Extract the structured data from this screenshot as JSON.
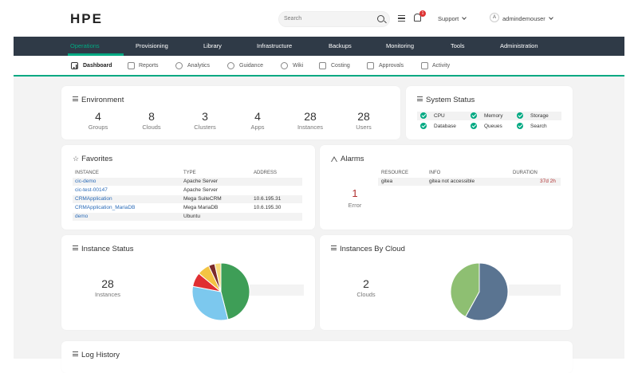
{
  "header": {
    "logo": "HPE",
    "search_placeholder": "Search",
    "notification_count": "1",
    "support_label": "Support",
    "avatar_initial": "A",
    "username": "admindemouser"
  },
  "main_nav": [
    "Operations",
    "Provisioning",
    "Library",
    "Infrastructure",
    "Backups",
    "Monitoring",
    "Tools",
    "Administration"
  ],
  "sub_nav": [
    "Dashboard",
    "Reports",
    "Analytics",
    "Guidance",
    "Wiki",
    "Costing",
    "Approvals",
    "Activity"
  ],
  "environment": {
    "title": "Environment",
    "stats": [
      {
        "value": "4",
        "label": "Groups"
      },
      {
        "value": "8",
        "label": "Clouds"
      },
      {
        "value": "3",
        "label": "Clusters"
      },
      {
        "value": "4",
        "label": "Apps"
      },
      {
        "value": "28",
        "label": "Instances"
      },
      {
        "value": "28",
        "label": "Users"
      }
    ]
  },
  "system_status": {
    "title": "System Status",
    "items": [
      "CPU",
      "Memory",
      "Storage",
      "Database",
      "Queues",
      "Search"
    ],
    "ok_color": "#01a982"
  },
  "favorites": {
    "title": "Favorites",
    "headers": [
      "INSTANCE",
      "TYPE",
      "ADDRESS"
    ],
    "rows": [
      {
        "instance": "cic-demo",
        "type": "Apache Server",
        "address": ""
      },
      {
        "instance": "cic-test-00147",
        "type": "Apache Server",
        "address": ""
      },
      {
        "instance": "CRMApplication",
        "type": "Mega SuiteCRM",
        "address": "10.6.195.31"
      },
      {
        "instance": "CRMApplication_MariaDB",
        "type": "Mega MariaDB",
        "address": "10.6.195.30"
      },
      {
        "instance": "demo",
        "type": "Ubuntu",
        "address": ""
      }
    ]
  },
  "alarms": {
    "title": "Alarms",
    "count": "1",
    "count_label": "Error",
    "headers": [
      "RESOURCE",
      "INFO",
      "DURATION"
    ],
    "rows": [
      {
        "resource": "gitea",
        "info": "gitea not accessible",
        "duration": "37d 2h"
      }
    ]
  },
  "instance_status": {
    "title": "Instance Status",
    "value": "28",
    "label": "Instances",
    "pie": [
      {
        "fraction": 0.46,
        "color": "#3e9e57"
      },
      {
        "fraction": 0.32,
        "color": "#7cc8ee"
      },
      {
        "fraction": 0.08,
        "color": "#e02f32"
      },
      {
        "fraction": 0.07,
        "color": "#f3c443"
      },
      {
        "fraction": 0.035,
        "color": "#7b2a2a"
      },
      {
        "fraction": 0.035,
        "color": "#f6d979"
      }
    ]
  },
  "instances_by_cloud": {
    "title": "Instances By Cloud",
    "value": "2",
    "label": "Clouds",
    "pie": [
      {
        "fraction": 0.58,
        "color": "#5a7491"
      },
      {
        "fraction": 0.42,
        "color": "#8ebf72"
      }
    ]
  },
  "log_history": {
    "title": "Log History"
  }
}
